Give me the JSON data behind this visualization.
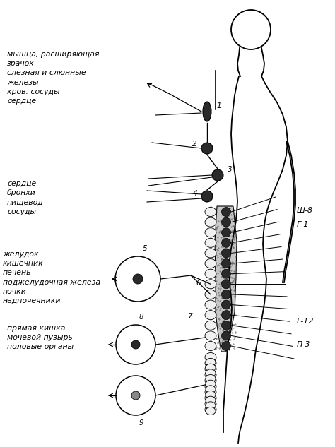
{
  "bg_color": "#ffffff",
  "figure_size": [
    4.74,
    6.33
  ],
  "dpi": 100,
  "label_top_left": "мышца, расширяющая\nзрачок\nслезная и слюнные\nжелезы\nкров. сосуды\nсердце",
  "label_mid_left": "сердце\nбронхи\nпищевод\nсосуды",
  "label_low_left": "желудок\nкишечник\nпечень\nподжелудочная железа\nпочки\nнадпочечники",
  "label_bot_left": "прямая кишка\nмочевой пузырь\nполовые органы",
  "label_sh8": "Ш-8",
  "label_g1": "Г-1",
  "label_g12": "Г-12",
  "label_p3": "П-3",
  "numbers": [
    "1",
    "2",
    "3",
    "4",
    "5",
    "6",
    "7",
    "8",
    "9"
  ],
  "spine_color": "#000000",
  "ganglion_color": "#2a2a2a",
  "stipple_color": "#c8c8c8",
  "nerve_color": "#111111",
  "body_color": "#000000"
}
